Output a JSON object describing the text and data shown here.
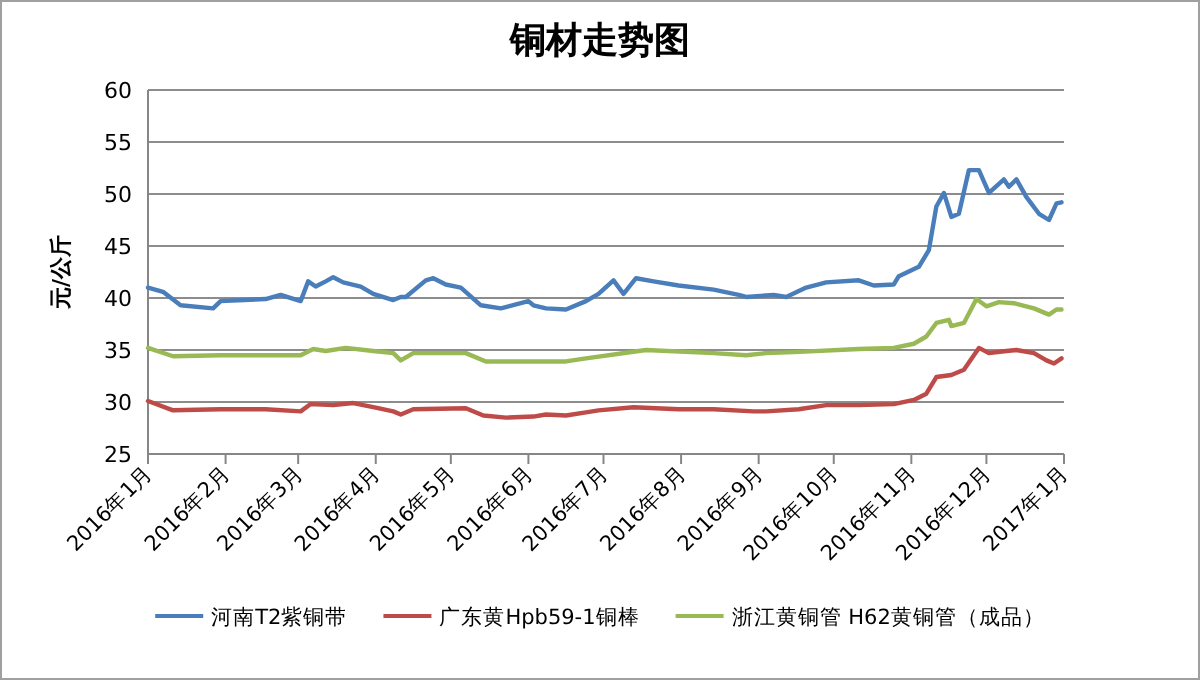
{
  "chart_data": {
    "type": "line",
    "title": "铜材走势图",
    "ylabel": "元/公斤",
    "xlim": [
      "2016-01-01",
      "2017-01-01"
    ],
    "ylim": [
      25,
      60
    ],
    "yticks": [
      25,
      30,
      35,
      40,
      45,
      50,
      55,
      60
    ],
    "xticks": [
      {
        "value": "2016-01-01",
        "label": "2016年1月"
      },
      {
        "value": "2016-02-01",
        "label": "2016年2月"
      },
      {
        "value": "2016-03-01",
        "label": "2016年3月"
      },
      {
        "value": "2016-04-01",
        "label": "2016年4月"
      },
      {
        "value": "2016-05-01",
        "label": "2016年5月"
      },
      {
        "value": "2016-06-01",
        "label": "2016年6月"
      },
      {
        "value": "2016-07-01",
        "label": "2016年7月"
      },
      {
        "value": "2016-08-01",
        "label": "2016年8月"
      },
      {
        "value": "2016-09-01",
        "label": "2016年9月"
      },
      {
        "value": "2016-10-01",
        "label": "2016年10月"
      },
      {
        "value": "2016-11-01",
        "label": "2016年11月"
      },
      {
        "value": "2016-12-01",
        "label": "2016年12月"
      },
      {
        "value": "2017-01-01",
        "label": "2017年1月"
      }
    ],
    "grid": "y",
    "legend": "bottom",
    "marker": "none",
    "line_style": "solid",
    "series": [
      {
        "name": "河南T2紫铜带",
        "color": "#4a7ebb",
        "x": [
          "2016-01-01",
          "2016-01-07",
          "2016-01-14",
          "2016-01-27",
          "2016-01-30",
          "2016-02-17",
          "2016-02-23",
          "2016-03-02",
          "2016-03-05",
          "2016-03-08",
          "2016-03-12",
          "2016-03-15",
          "2016-03-19",
          "2016-03-26",
          "2016-03-31",
          "2016-04-08",
          "2016-04-11",
          "2016-04-13",
          "2016-04-21",
          "2016-04-24",
          "2016-04-29",
          "2016-05-05",
          "2016-05-13",
          "2016-05-21",
          "2016-06-01",
          "2016-06-03",
          "2016-06-08",
          "2016-06-16",
          "2016-06-24",
          "2016-06-29",
          "2016-07-05",
          "2016-07-09",
          "2016-07-14",
          "2016-07-21",
          "2016-07-31",
          "2016-08-14",
          "2016-08-24",
          "2016-08-27",
          "2016-09-07",
          "2016-09-12",
          "2016-09-20",
          "2016-09-28",
          "2016-10-11",
          "2016-10-17",
          "2016-10-25",
          "2016-10-27",
          "2016-11-04",
          "2016-11-08",
          "2016-11-11",
          "2016-11-14",
          "2016-11-17",
          "2016-11-20",
          "2016-11-24",
          "2016-11-28",
          "2016-12-02",
          "2016-12-08",
          "2016-12-10",
          "2016-12-13",
          "2016-12-17",
          "2016-12-22",
          "2016-12-26",
          "2016-12-29",
          "2016-12-31"
        ],
        "values": [
          41.0,
          40.6,
          39.3,
          39.0,
          39.7,
          39.9,
          40.3,
          39.7,
          41.6,
          41.1,
          41.6,
          42.0,
          41.5,
          41.1,
          40.4,
          39.8,
          40.1,
          40.1,
          41.7,
          41.9,
          41.3,
          41.0,
          39.3,
          39.0,
          39.7,
          39.3,
          39.0,
          38.9,
          39.7,
          40.4,
          41.7,
          40.4,
          41.9,
          41.6,
          41.2,
          40.8,
          40.3,
          40.1,
          40.3,
          40.1,
          41.0,
          41.5,
          41.7,
          41.2,
          41.3,
          42.1,
          43.0,
          44.6,
          48.8,
          50.1,
          47.8,
          48.1,
          52.3,
          52.3,
          50.1,
          51.4,
          50.7,
          51.4,
          49.7,
          48.1,
          47.5,
          49.1,
          49.2
        ]
      },
      {
        "name": "广东黄Hpb59-1铜棒",
        "color": "#be4b48",
        "x": [
          "2016-01-01",
          "2016-01-11",
          "2016-01-30",
          "2016-02-17",
          "2016-03-02",
          "2016-03-06",
          "2016-03-15",
          "2016-03-23",
          "2016-03-31",
          "2016-04-08",
          "2016-04-11",
          "2016-04-16",
          "2016-05-07",
          "2016-05-14",
          "2016-05-23",
          "2016-06-03",
          "2016-06-08",
          "2016-06-16",
          "2016-06-24",
          "2016-06-29",
          "2016-07-13",
          "2016-07-31",
          "2016-08-14",
          "2016-08-30",
          "2016-09-04",
          "2016-09-17",
          "2016-09-28",
          "2016-10-11",
          "2016-10-25",
          "2016-11-02",
          "2016-11-07",
          "2016-11-11",
          "2016-11-17",
          "2016-11-22",
          "2016-11-28",
          "2016-12-02",
          "2016-12-09",
          "2016-12-13",
          "2016-12-20",
          "2016-12-25",
          "2016-12-28",
          "2016-12-31"
        ],
        "values": [
          30.1,
          29.2,
          29.3,
          29.3,
          29.1,
          29.8,
          29.7,
          29.9,
          29.5,
          29.1,
          28.8,
          29.3,
          29.4,
          28.7,
          28.5,
          28.6,
          28.8,
          28.7,
          29.0,
          29.2,
          29.5,
          29.3,
          29.3,
          29.1,
          29.1,
          29.3,
          29.7,
          29.7,
          29.8,
          30.2,
          30.8,
          32.4,
          32.6,
          33.1,
          35.2,
          34.7,
          34.9,
          35.0,
          34.7,
          34.0,
          33.7,
          34.2
        ]
      },
      {
        "name": "浙江黄铜管  H62黄铜管（成品）",
        "color": "#98b954",
        "x": [
          "2016-01-01",
          "2016-01-11",
          "2016-01-30",
          "2016-03-02",
          "2016-03-07",
          "2016-03-12",
          "2016-03-20",
          "2016-03-31",
          "2016-04-08",
          "2016-04-11",
          "2016-04-16",
          "2016-05-07",
          "2016-05-15",
          "2016-06-03",
          "2016-06-16",
          "2016-06-24",
          "2016-07-18",
          "2016-08-14",
          "2016-08-27",
          "2016-09-04",
          "2016-09-15",
          "2016-10-11",
          "2016-10-25",
          "2016-11-02",
          "2016-11-07",
          "2016-11-11",
          "2016-11-16",
          "2016-11-17",
          "2016-11-22",
          "2016-11-27",
          "2016-12-01",
          "2016-12-06",
          "2016-12-12",
          "2016-12-20",
          "2016-12-26",
          "2016-12-29",
          "2016-12-31"
        ],
        "values": [
          35.2,
          34.4,
          34.5,
          34.5,
          35.1,
          34.9,
          35.2,
          34.9,
          34.7,
          34.0,
          34.7,
          34.7,
          33.9,
          33.9,
          33.9,
          34.2,
          35.0,
          34.7,
          34.5,
          34.7,
          34.8,
          35.1,
          35.2,
          35.6,
          36.3,
          37.6,
          37.9,
          37.3,
          37.6,
          39.9,
          39.2,
          39.6,
          39.5,
          39.0,
          38.4,
          38.9,
          38.9
        ]
      }
    ]
  }
}
